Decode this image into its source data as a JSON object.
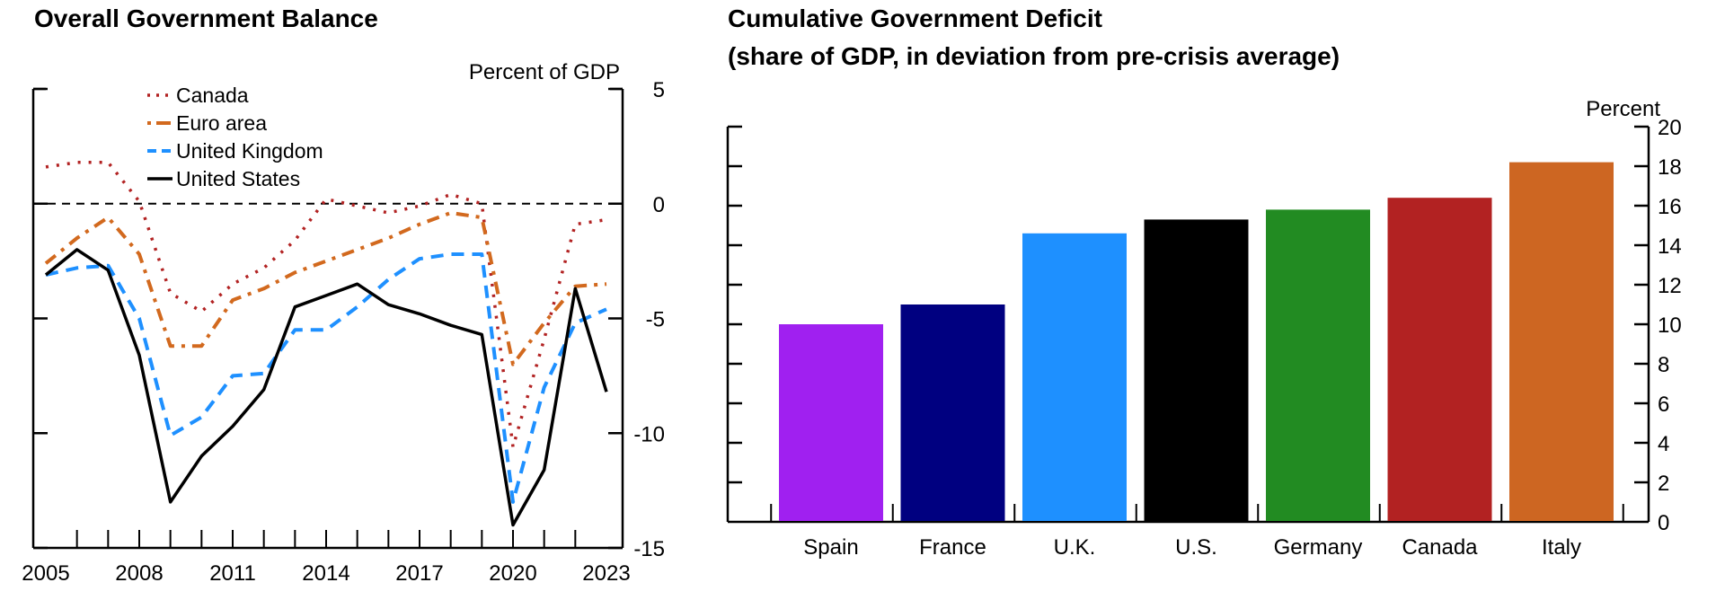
{
  "chart_data": [
    {
      "type": "line",
      "title": "Overall Government Balance",
      "ylabel": "Percent of GDP",
      "xlabel": "",
      "x": [
        2005,
        2006,
        2007,
        2008,
        2009,
        2010,
        2011,
        2012,
        2013,
        2014,
        2015,
        2016,
        2017,
        2018,
        2019,
        2020,
        2021,
        2022,
        2023
      ],
      "xlim": [
        2005,
        2023
      ],
      "ylim": [
        -15,
        5
      ],
      "xticks": [
        "2005",
        "2008",
        "2011",
        "2014",
        "2017",
        "2020",
        "2023"
      ],
      "yticks": [
        "5",
        "0",
        "-5",
        "-10",
        "-15"
      ],
      "y_axis_side": "right",
      "reference_line": 0,
      "legend_position": "top-left",
      "series": [
        {
          "name": "Canada",
          "color": "#b22222",
          "style": "dotted",
          "values": [
            1.6,
            1.8,
            1.8,
            0.1,
            -3.9,
            -4.7,
            -3.5,
            -2.8,
            -1.6,
            0.2,
            -0.1,
            -0.4,
            -0.1,
            0.4,
            0.0,
            -10.6,
            -5.9,
            -0.9,
            -0.7
          ]
        },
        {
          "name": "Euro area",
          "color": "#d2691e",
          "style": "dash-dot",
          "values": [
            -2.6,
            -1.5,
            -0.6,
            -2.2,
            -6.2,
            -6.2,
            -4.2,
            -3.7,
            -3.0,
            -2.5,
            -2.0,
            -1.5,
            -0.9,
            -0.4,
            -0.6,
            -7.0,
            -5.2,
            -3.6,
            -3.5
          ]
        },
        {
          "name": "United Kingdom",
          "color": "#1e90ff",
          "style": "dashed",
          "values": [
            -3.1,
            -2.8,
            -2.7,
            -5.0,
            -10.1,
            -9.3,
            -7.5,
            -7.4,
            -5.5,
            -5.5,
            -4.5,
            -3.3,
            -2.4,
            -2.2,
            -2.2,
            -13.0,
            -8.0,
            -5.2,
            -4.6
          ]
        },
        {
          "name": "United States",
          "color": "#000000",
          "style": "solid",
          "values": [
            -3.1,
            -2.0,
            -2.9,
            -6.6,
            -13.0,
            -11.0,
            -9.7,
            -8.1,
            -4.5,
            -4.0,
            -3.5,
            -4.4,
            -4.8,
            -5.3,
            -5.7,
            -14.0,
            -11.6,
            -3.7,
            -8.2
          ]
        }
      ]
    },
    {
      "type": "bar",
      "title": "Cumulative Government Deficit",
      "subtitle": "(share of GDP, in deviation from pre-crisis average)",
      "ylabel": "Percent",
      "xlabel": "",
      "categories": [
        "Spain",
        "France",
        "U.K.",
        "U.S.",
        "Germany",
        "Canada",
        "Italy"
      ],
      "values": [
        10.0,
        11.0,
        14.6,
        15.3,
        15.8,
        16.4,
        18.2
      ],
      "colors": [
        "#a020f0",
        "#000080",
        "#1e90ff",
        "#000000",
        "#228b22",
        "#b22222",
        "#cd6622"
      ],
      "ylim": [
        0,
        20
      ],
      "yticks": [
        "0",
        "2",
        "4",
        "6",
        "8",
        "10",
        "12",
        "14",
        "16",
        "18",
        "20"
      ],
      "y_axis_side": "right",
      "grid": false
    }
  ]
}
